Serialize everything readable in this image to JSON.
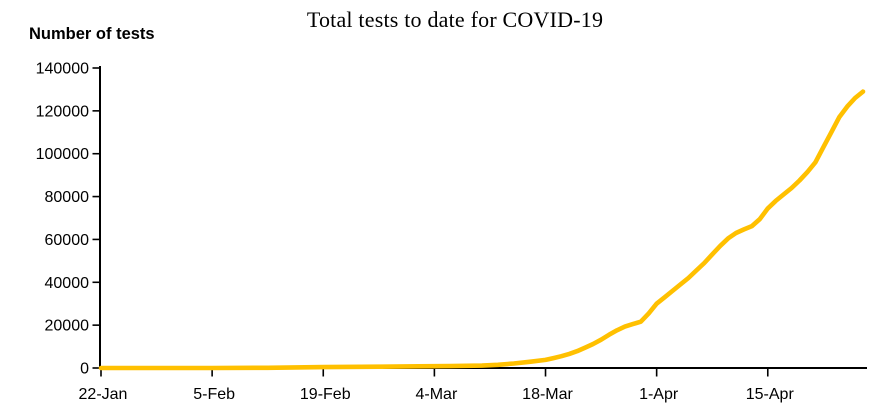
{
  "chart_data": {
    "type": "line",
    "title": "Total tests to date for COVID-19",
    "ylabel": "Number of tests",
    "xlabel": "",
    "ylim": [
      0,
      140000
    ],
    "y_ticks": [
      0,
      20000,
      40000,
      60000,
      80000,
      100000,
      120000,
      140000
    ],
    "y_tick_labels": [
      "0",
      "20000",
      "40000",
      "60000",
      "80000",
      "100000",
      "120000",
      "140000"
    ],
    "x_tick_labels": [
      "22-Jan",
      "5-Feb",
      "19-Feb",
      "4-Mar",
      "18-Mar",
      "1-Apr",
      "15-Apr"
    ],
    "x_tick_days": [
      0,
      14,
      28,
      42,
      56,
      70,
      84
    ],
    "x_range_days": [
      0,
      96.5
    ],
    "grid": false,
    "legend": "none",
    "line_color": "#FFC000",
    "axis_color": "#000000",
    "series": [
      {
        "name": "Total tests to date",
        "days": [
          0,
          7,
          14,
          21,
          28,
          35,
          40,
          44,
          48,
          50,
          52,
          54,
          56,
          57,
          58,
          59,
          60,
          61,
          62,
          63,
          64,
          65,
          66,
          67,
          68,
          69,
          70,
          71,
          72,
          73,
          74,
          75,
          76,
          77,
          78,
          79,
          80,
          81,
          82,
          83,
          84,
          85,
          86,
          87,
          88,
          89,
          90,
          91,
          92,
          93,
          94,
          95,
          96
        ],
        "dates": [
          "22-Jan",
          "29-Jan",
          "5-Feb",
          "12-Feb",
          "19-Feb",
          "26-Feb",
          "2-Mar",
          "6-Mar",
          "10-Mar",
          "12-Mar",
          "14-Mar",
          "16-Mar",
          "18-Mar",
          "19-Mar",
          "20-Mar",
          "21-Mar",
          "22-Mar",
          "23-Mar",
          "24-Mar",
          "25-Mar",
          "26-Mar",
          "27-Mar",
          "28-Mar",
          "29-Mar",
          "30-Mar",
          "31-Mar",
          "1-Apr",
          "2-Apr",
          "3-Apr",
          "4-Apr",
          "5-Apr",
          "6-Apr",
          "7-Apr",
          "8-Apr",
          "9-Apr",
          "10-Apr",
          "11-Apr",
          "12-Apr",
          "13-Apr",
          "14-Apr",
          "15-Apr",
          "16-Apr",
          "17-Apr",
          "18-Apr",
          "19-Apr",
          "20-Apr",
          "21-Apr",
          "22-Apr",
          "23-Apr",
          "24-Apr",
          "25-Apr",
          "26-Apr",
          "27-Apr"
        ],
        "values": [
          0,
          0,
          0,
          100,
          400,
          600,
          800,
          900,
          1100,
          1500,
          2100,
          2900,
          3800,
          4600,
          5500,
          6600,
          7900,
          9500,
          11200,
          13200,
          15500,
          17600,
          19300,
          20500,
          21600,
          25500,
          30000,
          33000,
          36000,
          39000,
          42000,
          45500,
          49000,
          53000,
          57000,
          60500,
          63000,
          64700,
          66200,
          69500,
          74500,
          78000,
          81000,
          84000,
          87500,
          91500,
          96000,
          103000,
          110000,
          117000,
          122000,
          126000,
          129000
        ]
      }
    ]
  }
}
